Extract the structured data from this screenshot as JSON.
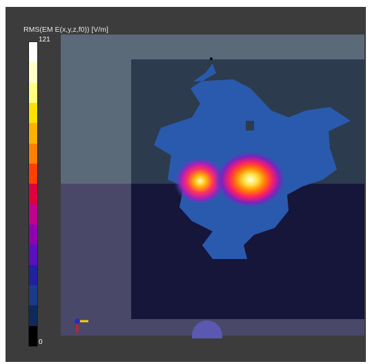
{
  "legend": {
    "title": "RMS(EM E(x,y,z,f0)) [V/m]",
    "max_label": "121",
    "min_label": "0",
    "colors": [
      "#ffffff",
      "#ffffc8",
      "#ffff80",
      "#ffe000",
      "#ffb000",
      "#ff8000",
      "#ff4000",
      "#e00040",
      "#c00090",
      "#9000b0",
      "#5a10c0",
      "#2020a0",
      "#1a3a8a",
      "#0e2a5a",
      "#000000"
    ]
  },
  "scene": {
    "background": "#3c3c3c",
    "upper_plane_color": "#5a6a78",
    "lower_plane_color": "#4a4868",
    "dark_region_color": "#16163a",
    "field_low_color": "#2a5aae",
    "hotspots": [
      {
        "name": "left-hotspot",
        "peak_fraction": 0.8
      },
      {
        "name": "right-hotspot",
        "peak_fraction": 1.0
      }
    ],
    "probe_color": "#5a58b0",
    "axis_icons": [
      "y-axis-arrow-icon",
      "x-axis-arrow-icon",
      "z-axis-arrow-icon"
    ]
  }
}
